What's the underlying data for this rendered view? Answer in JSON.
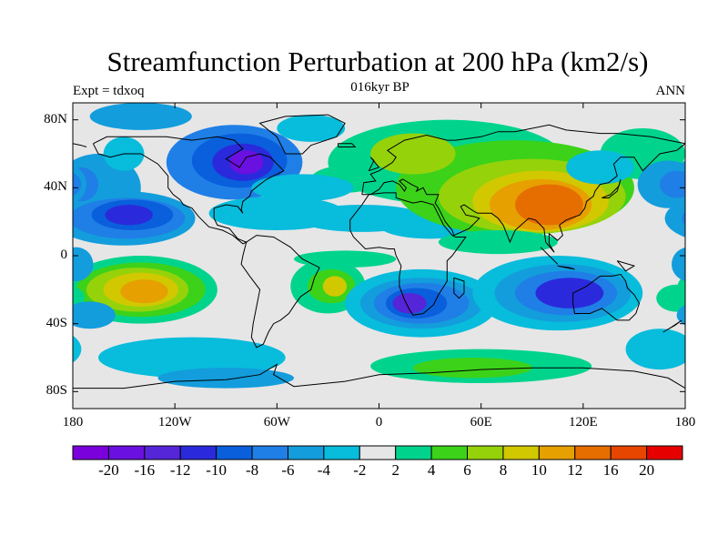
{
  "title": "Streamfunction Perturbation at 200 hPa (km2/s)",
  "left_label": "Expt = tdxoq",
  "center_label": "016kyr BP",
  "right_label": "ANN",
  "map": {
    "projection": "cylindrical-equidistant",
    "lon_range": [
      -180,
      180
    ],
    "lat_range": [
      -90,
      90
    ],
    "background_color": "#e6e6e6",
    "coastline_color": "#000000",
    "lat_ticks": [
      "80N",
      "40N",
      "0",
      "40S",
      "80S"
    ],
    "lon_ticks": [
      "180",
      "120W",
      "60W",
      "0",
      "60E",
      "120E",
      "180"
    ]
  },
  "colorbar": {
    "colors": [
      "#7a00dc",
      "#6a10e0",
      "#5525d8",
      "#2a2adc",
      "#0a5fdc",
      "#1f7fe6",
      "#139ddc",
      "#08bcdc",
      "#e6e6e6",
      "#00d48c",
      "#3cd21a",
      "#96d20a",
      "#d2c800",
      "#e6a000",
      "#e66e00",
      "#e64600",
      "#e60000"
    ],
    "labels": [
      "-20",
      "-16",
      "-12",
      "-10",
      "-8",
      "-6",
      "-4",
      "-2",
      "2",
      "4",
      "6",
      "8",
      "10",
      "12",
      "16",
      "20"
    ]
  },
  "features": [
    {
      "sign": "negative",
      "label": "North America low",
      "lon": -80,
      "lat": 55,
      "peak": -18
    },
    {
      "sign": "negative",
      "label": "North Pacific low",
      "lon": -145,
      "lat": 25,
      "peak": -12
    },
    {
      "sign": "negative",
      "label": "South Atlantic/Africa low",
      "lon": 25,
      "lat": -28,
      "peak": -18
    },
    {
      "sign": "negative",
      "label": "Indian Ocean/Australia low",
      "lon": 110,
      "lat": -20,
      "peak": -18
    },
    {
      "sign": "positive",
      "label": "Eurasia high",
      "lon": 90,
      "lat": 35,
      "peak": 16
    },
    {
      "sign": "positive",
      "label": "South Pacific high",
      "lon": -140,
      "lat": -20,
      "peak": 16
    },
    {
      "sign": "positive",
      "label": "South America high",
      "lon": -30,
      "lat": -20,
      "peak": 8
    },
    {
      "sign": "positive",
      "label": "Southern Ocean band",
      "lon": 60,
      "lat": -65,
      "peak": 4
    }
  ]
}
